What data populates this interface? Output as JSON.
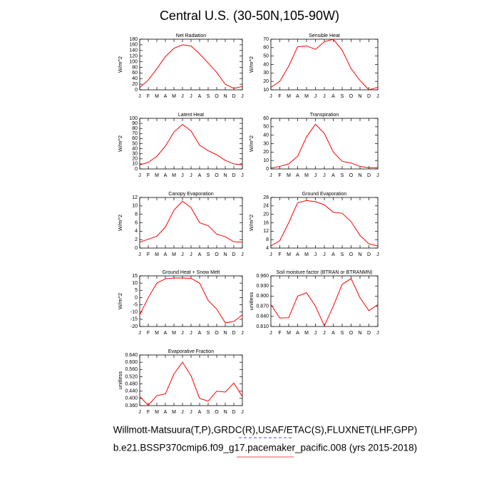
{
  "title": "Central U.S. (30-50N,105-90W)",
  "footer": [
    "Willmott-Matsuura(T,P),GRDC(R),USAF/ETAC(S),FLUXNET(LHF,GPP)",
    "b.e21.BSSP370cmip6.f09_g17.pacemaker_pacific.008 (yrs 2015-2018)"
  ],
  "chart_data": [
    {
      "type": "line",
      "title": "Net Radiation",
      "y_label": "W/m^2",
      "color": "#ff0000",
      "categories": [
        "J",
        "F",
        "M",
        "A",
        "M",
        "J",
        "J",
        "A",
        "S",
        "O",
        "N",
        "D",
        "J"
      ],
      "values": [
        8,
        35,
        75,
        118,
        148,
        160,
        156,
        128,
        95,
        62,
        20,
        5,
        12
      ],
      "ylim": [
        0,
        180
      ],
      "yticks": [
        0,
        20,
        40,
        60,
        80,
        100,
        120,
        140,
        160,
        180
      ]
    },
    {
      "type": "line",
      "title": "Sensible Heat",
      "y_label": "W/m^2",
      "color": "#ff0000",
      "categories": [
        "J",
        "F",
        "M",
        "A",
        "M",
        "J",
        "J",
        "A",
        "S",
        "O",
        "N",
        "D",
        "J"
      ],
      "values": [
        13,
        20,
        38,
        61,
        62,
        58,
        67,
        70,
        57,
        35,
        21,
        10,
        13
      ],
      "ylim": [
        10,
        70
      ],
      "yticks": [
        10,
        20,
        30,
        40,
        50,
        60,
        70
      ]
    },
    {
      "type": "line",
      "title": "Latent Heat",
      "y_label": "W/m^2",
      "color": "#ff0000",
      "categories": [
        "J",
        "F",
        "M",
        "A",
        "M",
        "J",
        "J",
        "A",
        "S",
        "O",
        "N",
        "D",
        "J"
      ],
      "values": [
        8,
        13,
        25,
        45,
        73,
        88,
        75,
        47,
        36,
        28,
        17,
        10,
        8
      ],
      "ylim": [
        0,
        100
      ],
      "yticks": [
        0,
        10,
        20,
        30,
        40,
        50,
        60,
        70,
        80,
        90,
        100
      ]
    },
    {
      "type": "line",
      "title": "Transpiration",
      "y_label": "W/m^2",
      "color": "#ff0000",
      "categories": [
        "J",
        "F",
        "M",
        "A",
        "M",
        "J",
        "J",
        "A",
        "S",
        "O",
        "N",
        "D",
        "J"
      ],
      "values": [
        1,
        3,
        6,
        15,
        38,
        53,
        42,
        20,
        9,
        7,
        3,
        1.5,
        1.5
      ],
      "ylim": [
        0,
        60
      ],
      "yticks": [
        0,
        10,
        20,
        30,
        40,
        50,
        60
      ]
    },
    {
      "type": "line",
      "title": "Canopy Evaporation",
      "y_label": "W/m^2",
      "color": "#ff0000",
      "categories": [
        "J",
        "F",
        "M",
        "A",
        "M",
        "J",
        "J",
        "A",
        "S",
        "O",
        "N",
        "D",
        "J"
      ],
      "values": [
        1.4,
        2.1,
        2.8,
        5,
        9,
        11.1,
        9.6,
        6,
        5.3,
        3.3,
        2.7,
        1.5,
        1.4
      ],
      "ylim": [
        0,
        12
      ],
      "yticks": [
        0,
        2,
        4,
        6,
        8,
        10,
        12
      ]
    },
    {
      "type": "line",
      "title": "Ground Evaporation",
      "y_label": "W/m^2",
      "color": "#ff0000",
      "categories": [
        "J",
        "F",
        "M",
        "A",
        "M",
        "J",
        "J",
        "A",
        "S",
        "O",
        "N",
        "D",
        "J"
      ],
      "values": [
        5,
        7.5,
        16,
        25.5,
        26.5,
        26,
        24.5,
        21,
        20.5,
        16.5,
        10,
        6,
        5
      ],
      "ylim": [
        4,
        28
      ],
      "yticks": [
        4,
        8,
        12,
        16,
        20,
        24,
        28
      ]
    },
    {
      "type": "line",
      "title": "Ground Heat + Snow Melt",
      "y_label": "W/m^2",
      "color": "#ff0000",
      "categories": [
        "J",
        "F",
        "M",
        "A",
        "M",
        "J",
        "J",
        "A",
        "S",
        "O",
        "N",
        "D",
        "J"
      ],
      "values": [
        -12,
        0,
        10,
        13,
        13.5,
        13.5,
        13.3,
        10,
        -2,
        -8,
        -17.5,
        -16.5,
        -12
      ],
      "ylim": [
        -20,
        15
      ],
      "yticks": [
        -20,
        -15,
        -10,
        -5,
        0,
        5,
        10,
        15
      ]
    },
    {
      "type": "line",
      "title": "Soil moisture factor (BTRAN or BTRANMN)",
      "y_label": "unitless",
      "color": "#ff0000",
      "categories": [
        "J",
        "F",
        "M",
        "A",
        "M",
        "J",
        "J",
        "A",
        "S",
        "O",
        "N",
        "D",
        "J"
      ],
      "values": [
        0.875,
        0.835,
        0.836,
        0.9,
        0.91,
        0.87,
        0.812,
        0.87,
        0.935,
        0.952,
        0.895,
        0.857,
        0.875
      ],
      "ylim": [
        0.81,
        0.96
      ],
      "yticks": [
        {
          "value": 0.81,
          "label": "0.810"
        },
        {
          "value": 0.84,
          "label": "0.840"
        },
        {
          "value": 0.87,
          "label": "0.870"
        },
        {
          "value": 0.9,
          "label": "0.900"
        },
        {
          "value": 0.93,
          "label": "0.930"
        },
        {
          "value": 0.96,
          "label": "0.960"
        }
      ]
    },
    {
      "type": "line",
      "title": "Evaporative Fraction",
      "y_label": "unitless",
      "color": "#ff0000",
      "categories": [
        "J",
        "F",
        "M",
        "A",
        "M",
        "J",
        "J",
        "A",
        "S",
        "O",
        "N",
        "D",
        "J"
      ],
      "values": [
        0.41,
        0.362,
        0.415,
        0.425,
        0.535,
        0.6,
        0.525,
        0.4,
        0.385,
        0.44,
        0.435,
        0.485,
        0.41
      ],
      "ylim": [
        0.36,
        0.64
      ],
      "yticks": [
        {
          "value": 0.36,
          "label": "0.360"
        },
        {
          "value": 0.4,
          "label": "0.400"
        },
        {
          "value": 0.44,
          "label": "0.440"
        },
        {
          "value": 0.48,
          "label": "0.480"
        },
        {
          "value": 0.52,
          "label": "0.520"
        },
        {
          "value": 0.56,
          "label": "0.560"
        },
        {
          "value": 0.6,
          "label": "0.600"
        },
        {
          "value": 0.64,
          "label": "0.640"
        }
      ]
    }
  ]
}
